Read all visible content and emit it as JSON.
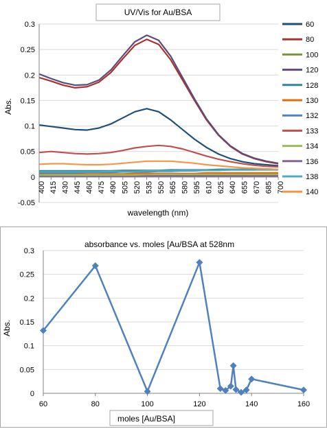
{
  "chart_data": [
    {
      "type": "line",
      "title": "UV/Vis for Au/BSA",
      "xlabel": "wavelength (nm)",
      "ylabel": "Abs.",
      "x": [
        400,
        415,
        430,
        445,
        460,
        475,
        490,
        505,
        520,
        535,
        550,
        565,
        580,
        595,
        610,
        625,
        640,
        655,
        670,
        685,
        700
      ],
      "x_tick_labels": [
        "400",
        "415",
        "430",
        "445",
        "460",
        "475",
        "490",
        "505",
        "520",
        "535",
        "550",
        "565",
        "580",
        "595",
        "610",
        "625",
        "640",
        "655",
        "670",
        "685",
        "700"
      ],
      "ylim": [
        -0.05,
        0.3
      ],
      "y_ticks": [
        -0.05,
        0,
        0.05,
        0.1,
        0.15,
        0.2,
        0.25,
        0.3
      ],
      "y_tick_labels": [
        "-0.05",
        "0",
        "0.05",
        "0.1",
        "0.15",
        "0.2",
        "0.25",
        "0.3"
      ],
      "grid": "horizontal",
      "legend_position": "right",
      "series": [
        {
          "name": "60",
          "color": "#1f4e79",
          "values": [
            0.102,
            0.099,
            0.096,
            0.093,
            0.092,
            0.096,
            0.104,
            0.116,
            0.128,
            0.134,
            0.128,
            0.112,
            0.093,
            0.074,
            0.058,
            0.045,
            0.036,
            0.03,
            0.026,
            0.024,
            0.022
          ]
        },
        {
          "name": "80",
          "color": "#a8322d",
          "values": [
            0.195,
            0.188,
            0.18,
            0.175,
            0.177,
            0.186,
            0.205,
            0.232,
            0.258,
            0.27,
            0.26,
            0.23,
            0.19,
            0.15,
            0.112,
            0.082,
            0.06,
            0.045,
            0.036,
            0.03,
            0.026
          ]
        },
        {
          "name": "100",
          "color": "#77933c",
          "values": [
            0.003,
            0.003,
            0.003,
            0.003,
            0.003,
            0.003,
            0.003,
            0.004,
            0.004,
            0.004,
            0.004,
            0.004,
            0.004,
            0.004,
            0.004,
            0.004,
            0.004,
            0.004,
            0.004,
            0.004,
            0.004
          ]
        },
        {
          "name": "120",
          "color": "#604a7b",
          "values": [
            0.202,
            0.193,
            0.185,
            0.18,
            0.181,
            0.19,
            0.21,
            0.238,
            0.265,
            0.278,
            0.268,
            0.237,
            0.195,
            0.153,
            0.114,
            0.083,
            0.061,
            0.046,
            0.037,
            0.031,
            0.027
          ]
        },
        {
          "name": "128",
          "color": "#31859c",
          "values": [
            0.012,
            0.012,
            0.012,
            0.012,
            0.012,
            0.012,
            0.012,
            0.013,
            0.013,
            0.013,
            0.013,
            0.014,
            0.014,
            0.014,
            0.014,
            0.015,
            0.015,
            0.015,
            0.015,
            0.015,
            0.015
          ]
        },
        {
          "name": "130",
          "color": "#e46c0a",
          "values": [
            0.006,
            0.006,
            0.006,
            0.006,
            0.006,
            0.006,
            0.006,
            0.006,
            0.007,
            0.007,
            0.007,
            0.007,
            0.007,
            0.007,
            0.008,
            0.008,
            0.008,
            0.008,
            0.008,
            0.008,
            0.008
          ]
        },
        {
          "name": "132",
          "color": "#4f81bd",
          "values": [
            0.008,
            0.008,
            0.008,
            0.008,
            0.009,
            0.009,
            0.009,
            0.01,
            0.01,
            0.01,
            0.011,
            0.011,
            0.012,
            0.012,
            0.013,
            0.013,
            0.014,
            0.014,
            0.014,
            0.015,
            0.015
          ]
        },
        {
          "name": "133",
          "color": "#c0504d",
          "values": [
            0.048,
            0.05,
            0.048,
            0.046,
            0.045,
            0.046,
            0.048,
            0.052,
            0.057,
            0.06,
            0.062,
            0.06,
            0.055,
            0.048,
            0.041,
            0.035,
            0.03,
            0.026,
            0.023,
            0.021,
            0.02
          ]
        },
        {
          "name": "134",
          "color": "#9bbb59",
          "values": [
            0.004,
            0.004,
            0.004,
            0.004,
            0.004,
            0.004,
            0.004,
            0.004,
            0.004,
            0.004,
            0.005,
            0.005,
            0.005,
            0.005,
            0.005,
            0.005,
            0.005,
            0.005,
            0.005,
            0.005,
            0.005
          ]
        },
        {
          "name": "136",
          "color": "#8064a2",
          "values": [
            0.001,
            0.001,
            0.001,
            0.001,
            0.001,
            0.001,
            0.001,
            0.001,
            0.001,
            0.002,
            0.002,
            0.002,
            0.002,
            0.002,
            0.002,
            0.002,
            0.002,
            0.002,
            0.002,
            0.002,
            0.002
          ]
        },
        {
          "name": "138",
          "color": "#4bacc6",
          "values": [
            0.01,
            0.01,
            0.01,
            0.01,
            0.01,
            0.01,
            0.011,
            0.011,
            0.011,
            0.012,
            0.012,
            0.012,
            0.013,
            0.013,
            0.013,
            0.013,
            0.014,
            0.014,
            0.014,
            0.014,
            0.014
          ]
        },
        {
          "name": "140",
          "color": "#f79646",
          "values": [
            0.025,
            0.026,
            0.026,
            0.025,
            0.024,
            0.024,
            0.025,
            0.027,
            0.029,
            0.031,
            0.031,
            0.031,
            0.029,
            0.027,
            0.024,
            0.022,
            0.02,
            0.018,
            0.017,
            0.016,
            0.015
          ]
        }
      ]
    },
    {
      "type": "line",
      "title": "absorbance vs. moles [Au/BSA at 528nm",
      "xlabel": "moles [Au/BSA]",
      "ylabel": "Abs.",
      "xlim": [
        60,
        160
      ],
      "x_ticks": [
        60,
        80,
        100,
        120,
        140,
        160
      ],
      "x_tick_labels": [
        "60",
        "80",
        "100",
        "120",
        "140",
        "160"
      ],
      "ylim": [
        0,
        0.3
      ],
      "y_ticks": [
        0,
        0.05,
        0.1,
        0.15,
        0.2,
        0.25,
        0.3
      ],
      "y_tick_labels": [
        "0",
        "0.05",
        "0.1",
        "0.15",
        "0.2",
        "0.25",
        "0.3"
      ],
      "grid": "horizontal",
      "marker": "diamond",
      "color": "#4f81bd",
      "series": [
        {
          "x": [
            60,
            80,
            100,
            120,
            128,
            130,
            132,
            133,
            134,
            136,
            138,
            140,
            160
          ],
          "values": [
            0.132,
            0.268,
            0.004,
            0.275,
            0.01,
            0.006,
            0.015,
            0.058,
            0.008,
            0.002,
            0.007,
            0.03,
            0.007
          ]
        }
      ]
    }
  ]
}
